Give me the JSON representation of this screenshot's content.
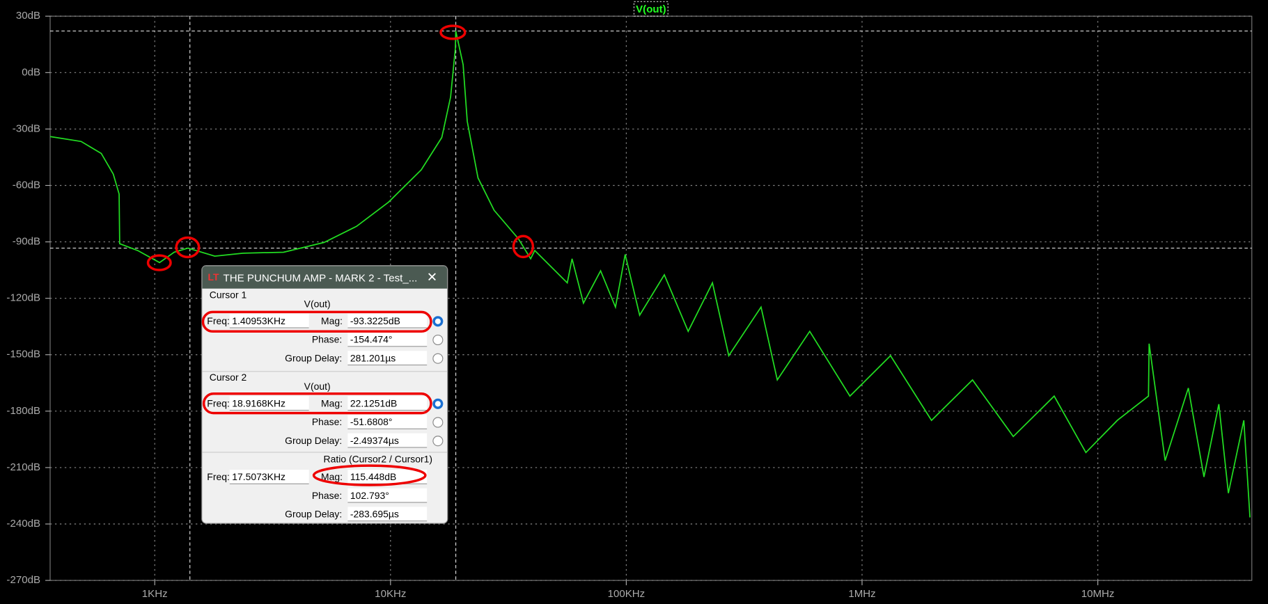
{
  "chart_data": {
    "type": "line",
    "log_x": true,
    "grid": true,
    "legend": "top",
    "xlim": [
      360,
      45000000
    ],
    "ylim": [
      -270,
      30
    ],
    "xticks": [
      {
        "value": 1000,
        "label": "1KHz"
      },
      {
        "value": 10000,
        "label": "10KHz"
      },
      {
        "value": 100000,
        "label": "100KHz"
      },
      {
        "value": 1000000,
        "label": "1MHz"
      },
      {
        "value": 10000000,
        "label": "10MHz"
      }
    ],
    "yticks": [
      {
        "value": 30,
        "label": "30dB"
      },
      {
        "value": 0,
        "label": "0dB"
      },
      {
        "value": -30,
        "label": "-30dB"
      },
      {
        "value": -60,
        "label": "-60dB"
      },
      {
        "value": -90,
        "label": "-90dB"
      },
      {
        "value": -120,
        "label": "-120dB"
      },
      {
        "value": -150,
        "label": "-150dB"
      },
      {
        "value": -180,
        "label": "-180dB"
      },
      {
        "value": -210,
        "label": "-210dB"
      },
      {
        "value": -240,
        "label": "-240dB"
      },
      {
        "value": -270,
        "label": "-270dB"
      }
    ],
    "cursors": [
      {
        "x": 1409.53,
        "y": -93.3225
      },
      {
        "x": 18916.8,
        "y": 22.1251
      }
    ],
    "x": [
      360,
      487,
      593,
      667,
      706,
      710,
      847,
      1048,
      1209,
      1383,
      1797,
      2367,
      3518,
      5230,
      7180,
      9800,
      13500,
      16500,
      17980,
      18840,
      18917,
      20320,
      21150,
      23500,
      27500,
      34800,
      39300,
      40900,
      56200,
      58900,
      65800,
      77800,
      90000,
      98900,
      114000,
      145000,
      183000,
      232000,
      272000,
      373000,
      437000,
      600000,
      888000,
      1320000,
      1970000,
      2940000,
      4380000,
      6530000,
      8900000,
      12100000,
      16400000,
      16500000,
      19300000,
      24200000,
      28200000,
      32600000,
      35800000,
      41600000,
      44200000
    ],
    "series": [
      {
        "name": "V(out)",
        "color": "#22dd22",
        "values": [
          -34,
          -36.6,
          -43,
          -54,
          -64.6,
          -91,
          -94.6,
          -101,
          -95.5,
          -93.3,
          -97.6,
          -96,
          -95.5,
          -90.3,
          -81.7,
          -68.9,
          -51.7,
          -34.5,
          -13,
          12.8,
          22.1,
          4.2,
          -25.9,
          -56,
          -73.2,
          -88.2,
          -99,
          -94.6,
          -111.8,
          -99,
          -122.6,
          -105.4,
          -124.7,
          -96.7,
          -129,
          -107.5,
          -137.6,
          -111.8,
          -150.5,
          -124.7,
          -163.4,
          -137.6,
          -172,
          -150.5,
          -184.9,
          -163.4,
          -193.5,
          -172,
          -202,
          -184.9,
          -172,
          -144.1,
          -206.3,
          -167.7,
          -215,
          -176.3,
          -223.6,
          -184.9,
          -236.5
        ]
      }
    ]
  },
  "cursor_dialog": {
    "title": "THE PUNCHUM AMP - MARK 2 -  Test_...",
    "sections": [
      {
        "heading": "Cursor 1",
        "trace": "V(out)",
        "fields": [
          {
            "label": "Freq:",
            "value": "1.40953KHz"
          },
          {
            "label": "Mag:",
            "value": "-93.3225dB"
          },
          {
            "label": "Phase:",
            "value": "-154.474°"
          },
          {
            "label": "Group Delay:",
            "value": "281.201µs"
          }
        ]
      },
      {
        "heading": "Cursor 2",
        "trace": "V(out)",
        "fields": [
          {
            "label": "Freq:",
            "value": "18.9168KHz"
          },
          {
            "label": "Mag:",
            "value": "22.1251dB"
          },
          {
            "label": "Phase:",
            "value": "-51.6808°"
          },
          {
            "label": "Group Delay:",
            "value": "-2.49374µs"
          }
        ]
      },
      {
        "heading": "Ratio (Cursor2 / Cursor1)",
        "fields": [
          {
            "label": "Freq:",
            "value": "17.5073KHz"
          },
          {
            "label": "Mag:",
            "value": "115.448dB"
          },
          {
            "label": "Phase:",
            "value": "102.793°"
          },
          {
            "label": "Group Delay:",
            "value": "-283.695µs"
          }
        ]
      }
    ]
  }
}
